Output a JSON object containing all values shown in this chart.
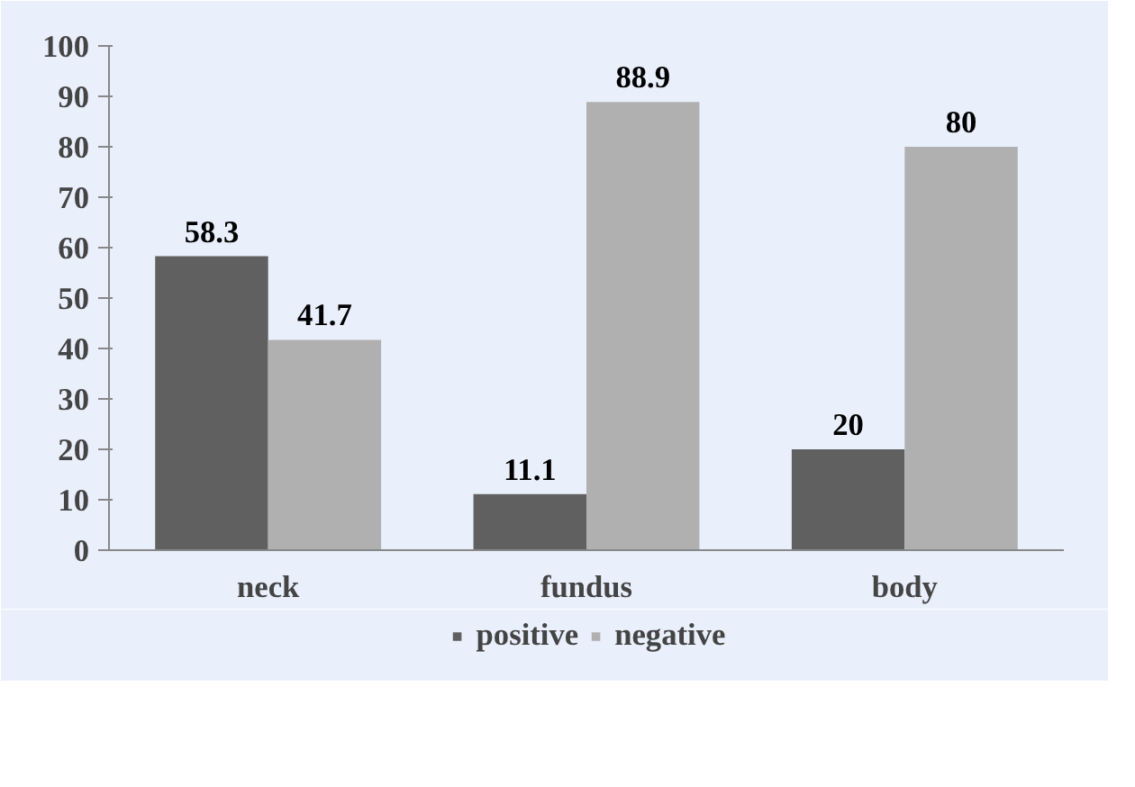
{
  "chart_data": {
    "type": "bar",
    "categories": [
      "neck",
      "fundus",
      "body"
    ],
    "series": [
      {
        "name": "positive",
        "color": "#606060",
        "values": [
          58.3,
          11.1,
          20
        ]
      },
      {
        "name": "negative",
        "color": "#b0b0b0",
        "values": [
          41.7,
          88.9,
          80
        ]
      }
    ],
    "ylim": [
      0,
      100
    ],
    "yticks": [
      0,
      10,
      20,
      30,
      40,
      50,
      60,
      70,
      80,
      90,
      100
    ],
    "data_labels": true,
    "grid": false,
    "legend": "bottom"
  }
}
